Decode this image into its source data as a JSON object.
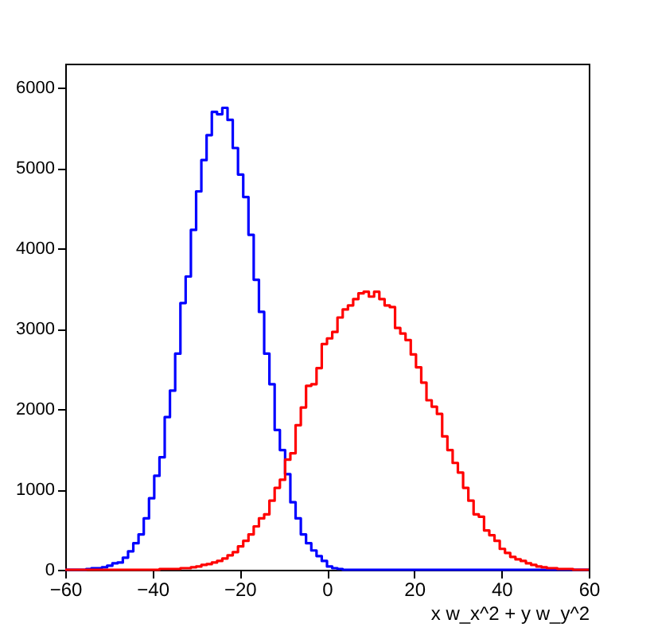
{
  "chart_data": {
    "type": "histogram",
    "xlabel": "x w_x^2 + y w_y^2",
    "bins": [
      -60,
      -58.8,
      -57.6,
      -56.4,
      -55.2,
      -54,
      -52.8,
      -51.6,
      -50.4,
      -49.2,
      -48,
      -46.8,
      -45.6,
      -44.4,
      -43.2,
      -42,
      -40.8,
      -39.6,
      -38.4,
      -37.2,
      -36,
      -34.8,
      -33.6,
      -32.4,
      -31.2,
      -30,
      -28.8,
      -27.6,
      -26.4,
      -25.2,
      -24,
      -22.8,
      -21.6,
      -20.4,
      -19.2,
      -18,
      -16.8,
      -15.6,
      -14.4,
      -13.2,
      -12,
      -10.8,
      -9.6,
      -8.4,
      -7.2,
      -6,
      -4.8,
      -3.6,
      -2.4,
      -1.2,
      0,
      1.2,
      2.4,
      3.6,
      4.8,
      6,
      7.2,
      8.4,
      9.6,
      10.8,
      12,
      13.2,
      14.4,
      15.6,
      16.8,
      18,
      19.2,
      20.4,
      21.6,
      22.8,
      24,
      25.2,
      26.4,
      27.6,
      28.8,
      30,
      31.2,
      32.4,
      33.6,
      34.8,
      36,
      37.2,
      38.4,
      39.6,
      40.8,
      42,
      43.2,
      44.4,
      45.6,
      46.8,
      48,
      49.2,
      50.4,
      51.6,
      52.8,
      54,
      55.2,
      56.4,
      57.6,
      58.8,
      60
    ],
    "series": [
      {
        "color": "#0000ff",
        "values": [
          0,
          0,
          0,
          0,
          10,
          20,
          20,
          30,
          50,
          80,
          90,
          150,
          230,
          330,
          440,
          640,
          890,
          1170,
          1400,
          1900,
          2230,
          2690,
          3320,
          3650,
          4230,
          4710,
          5100,
          5410,
          5700,
          5670,
          5750,
          5600,
          5250,
          4920,
          4640,
          4170,
          3610,
          3210,
          2690,
          2310,
          1740,
          1490,
          1190,
          840,
          640,
          440,
          330,
          240,
          170,
          110,
          40,
          20,
          10,
          0,
          0,
          0,
          0,
          0,
          0,
          0,
          0,
          0,
          0,
          0,
          0,
          0,
          0,
          0,
          0,
          0,
          0,
          0,
          0,
          0,
          0,
          0,
          0,
          0,
          0,
          0,
          0,
          0,
          0,
          0,
          0,
          0,
          0,
          0,
          0,
          0,
          0,
          0,
          0,
          0,
          0,
          0,
          0,
          0,
          0,
          0
        ]
      },
      {
        "color": "#ff0000",
        "values": [
          0,
          0,
          0,
          0,
          0,
          0,
          0,
          0,
          0,
          0,
          0,
          0,
          0,
          0,
          0,
          0,
          0,
          0,
          10,
          10,
          10,
          10,
          20,
          20,
          30,
          40,
          60,
          70,
          90,
          110,
          140,
          180,
          220,
          290,
          360,
          440,
          540,
          640,
          690,
          860,
          1020,
          1120,
          1370,
          1450,
          1800,
          2020,
          2290,
          2310,
          2510,
          2810,
          2880,
          2960,
          3140,
          3240,
          3290,
          3370,
          3440,
          3460,
          3400,
          3460,
          3370,
          3290,
          3270,
          3010,
          2940,
          2860,
          2680,
          2520,
          2330,
          2110,
          2030,
          1940,
          1660,
          1490,
          1330,
          1210,
          1020,
          860,
          690,
          660,
          490,
          430,
          360,
          260,
          210,
          160,
          130,
          110,
          80,
          60,
          40,
          30,
          20,
          20,
          10,
          10,
          10,
          0,
          0,
          0
        ]
      }
    ],
    "xlim": [
      -60,
      60
    ],
    "xticks": [
      -60,
      -40,
      -20,
      0,
      20,
      40,
      60
    ],
    "ylim": [
      0,
      6300
    ],
    "yticks": [
      0,
      1000,
      2000,
      3000,
      4000,
      5000,
      6000
    ],
    "grid": false,
    "legend": false
  }
}
